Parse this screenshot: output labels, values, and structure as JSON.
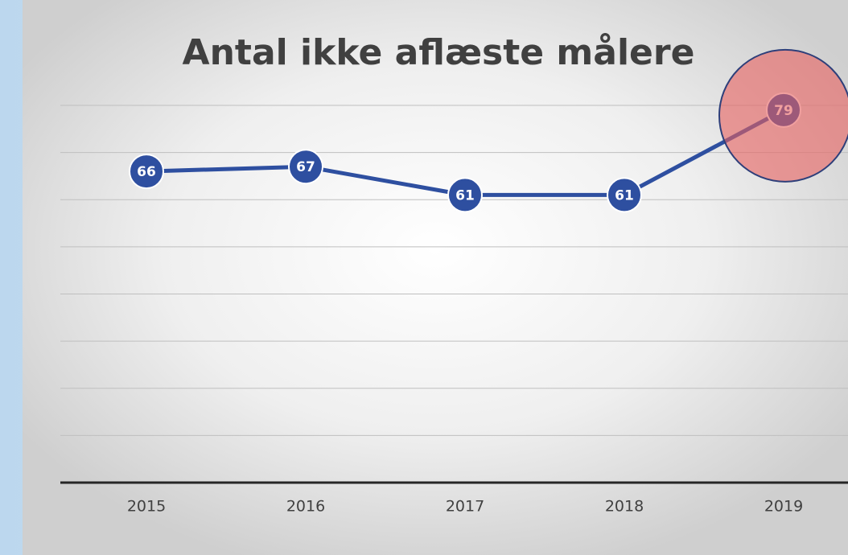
{
  "chart_data": {
    "type": "line",
    "title": "Antal ikke aflæste målere",
    "categories": [
      "2015",
      "2016",
      "2017",
      "2018",
      "2019"
    ],
    "values": [
      66,
      67,
      61,
      61,
      79
    ],
    "color": "#2e4fa0",
    "ylim": [
      0,
      80
    ],
    "yticks": [
      0,
      10,
      20,
      30,
      40,
      50,
      60,
      70,
      80
    ],
    "grid": true
  }
}
